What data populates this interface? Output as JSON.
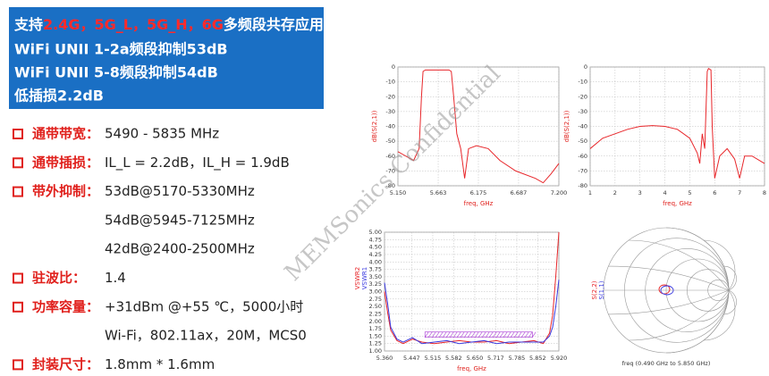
{
  "header": {
    "line1": {
      "prefix": "支持",
      "highlight": "2.4G，5G_L，5G_H，6G",
      "suffix": "多频段共存应用"
    },
    "lines": [
      "WiFi UNII 1-2a频段抑制53dB",
      "WiFi UNII 5-8频段抑制54dB",
      "低插损2.2dB"
    ]
  },
  "specs": [
    {
      "label": "通带带宽：",
      "lines": [
        "5490 - 5835 MHz"
      ]
    },
    {
      "label": "通带插损：",
      "lines": [
        "IL_L = 2.2dB，IL_H = 1.9dB"
      ]
    },
    {
      "label": "带外抑制：",
      "lines": [
        "53dB@5170-5330MHz",
        "54dB@5945-7125MHz",
        "42dB@2400-2500MHz"
      ]
    },
    {
      "label": "驻波比：",
      "lines": [
        "1.4"
      ]
    },
    {
      "label": "功率容量：",
      "lines": [
        "+31dBm @+55 ℃，5000小时",
        "Wi-Fi，802.11ax，20M，MCS0"
      ]
    },
    {
      "label": "封装尺寸：",
      "lines": [
        "1.8mm * 1.6mm"
      ]
    }
  ],
  "watermark": "MEMSonics Confidential",
  "chart_data": [
    {
      "type": "line",
      "xlabel": "freq, GHz",
      "ylabel": "dB(S(2,1))",
      "x": [
        5.15,
        5.25,
        5.35,
        5.42,
        5.45,
        5.47,
        5.5,
        5.6,
        5.8,
        5.83,
        5.86,
        5.9,
        5.95,
        6.0,
        6.05,
        6.15,
        6.3,
        6.45,
        6.65,
        6.9,
        7.0,
        7.1,
        7.2
      ],
      "series": [
        {
          "color": "#e8262a",
          "values": [
            -57,
            -60,
            -63,
            -55,
            -20,
            -3,
            -2,
            -2,
            -2,
            -3,
            -20,
            -45,
            -55,
            -75,
            -55,
            -53,
            -55,
            -63,
            -70,
            -75,
            -78,
            -72,
            -65
          ]
        }
      ],
      "xlim": [
        5.15,
        7.2
      ],
      "xticks": [
        {
          "value": 5.15,
          "label": "5.150"
        },
        5.663,
        6.175,
        6.687,
        {
          "value": 7.2,
          "label": "7.200"
        }
      ],
      "ylim": [
        -80,
        0
      ],
      "yticks": [
        0,
        -10,
        -20,
        -30,
        -40,
        -50,
        -60,
        -70,
        -80
      ],
      "grid": true
    },
    {
      "type": "line",
      "xlabel": "freq, GHz",
      "ylabel": "dB(S(2,1))",
      "x": [
        1,
        1.5,
        2,
        2.5,
        3,
        3.5,
        4,
        4.5,
        5,
        5.3,
        5.4,
        5.5,
        5.6,
        5.7,
        5.75,
        5.85,
        5.9,
        6.0,
        6.2,
        6.5,
        6.8,
        7.0,
        7.2,
        7.5,
        8
      ],
      "series": [
        {
          "color": "#e8262a",
          "values": [
            -55,
            -48,
            -45,
            -42,
            -40,
            -39.5,
            -40,
            -42,
            -48,
            -58,
            -65,
            -45,
            -55,
            -3,
            -1,
            -2,
            -40,
            -75,
            -60,
            -55,
            -62,
            -75,
            -60,
            -60,
            -65
          ]
        }
      ],
      "xlim": [
        1,
        8
      ],
      "xticks": [
        1,
        2,
        3,
        4,
        5,
        6,
        7,
        8
      ],
      "ylim": [
        -80,
        0
      ],
      "yticks": [
        0,
        -10,
        -20,
        -30,
        -40,
        -50,
        -60,
        -70,
        -80
      ],
      "grid": true
    },
    {
      "type": "line",
      "xlabel": "freq, GHz",
      "x": [
        5.36,
        5.37,
        5.38,
        5.4,
        5.42,
        5.45,
        5.48,
        5.52,
        5.56,
        5.6,
        5.64,
        5.68,
        5.72,
        5.76,
        5.8,
        5.84,
        5.87,
        5.89,
        5.9,
        5.91,
        5.92
      ],
      "series": [
        {
          "name": "VSWR2",
          "color": "#e8262a",
          "values": [
            3.0,
            2.3,
            1.7,
            1.35,
            1.25,
            1.4,
            1.3,
            1.25,
            1.3,
            1.35,
            1.3,
            1.3,
            1.35,
            1.25,
            1.3,
            1.35,
            1.25,
            1.6,
            2.2,
            3.5,
            5.0
          ]
        },
        {
          "name": "VSWR1",
          "color": "#3a3ae0",
          "values": [
            3.3,
            2.6,
            1.8,
            1.4,
            1.3,
            1.45,
            1.25,
            1.3,
            1.35,
            1.25,
            1.3,
            1.35,
            1.25,
            1.3,
            1.3,
            1.3,
            1.3,
            1.5,
            1.8,
            2.5,
            3.4
          ]
        }
      ],
      "band": {
        "x0": 5.49,
        "x1": 5.835,
        "y": 1.55,
        "color": "#b04ad8"
      },
      "xlim": [
        5.36,
        5.92
      ],
      "xticks": [
        {
          "value": 5.36,
          "label": "5.360"
        },
        5.447,
        5.515,
        5.582,
        {
          "value": 5.65,
          "label": "5.650"
        },
        5.717,
        5.785,
        5.852,
        {
          "value": 5.92,
          "label": "5.920"
        }
      ],
      "ylim": [
        1,
        5
      ],
      "yticks": [
        {
          "value": 1,
          "label": "1.00"
        },
        {
          "value": 1.25,
          "label": "1.25"
        },
        {
          "value": 1.5,
          "label": "1.50"
        },
        {
          "value": 1.75,
          "label": "1.75"
        },
        {
          "value": 2,
          "label": "2.00"
        },
        {
          "value": 2.25,
          "label": "2.25"
        },
        {
          "value": 2.5,
          "label": "2.50"
        },
        {
          "value": 2.75,
          "label": "2.75"
        },
        {
          "value": 3,
          "label": "3.00"
        },
        {
          "value": 3.25,
          "label": "3.25"
        },
        {
          "value": 3.5,
          "label": "3.50"
        },
        {
          "value": 3.75,
          "label": "3.75"
        },
        {
          "value": 4,
          "label": "4.00"
        },
        {
          "value": 4.25,
          "label": "4.25"
        },
        {
          "value": 4.5,
          "label": "4.50"
        },
        {
          "value": 4.75,
          "label": "4.75"
        },
        {
          "value": 5,
          "label": "5.00"
        }
      ],
      "grid": true
    },
    {
      "type": "smith",
      "xlabel": "freq (0.490 GHz to 5.850 GHz)",
      "series": [
        {
          "name": "S(2,2)",
          "color": "#e8262a"
        },
        {
          "name": "S(1,1)",
          "color": "#3a3ae0"
        }
      ]
    }
  ]
}
